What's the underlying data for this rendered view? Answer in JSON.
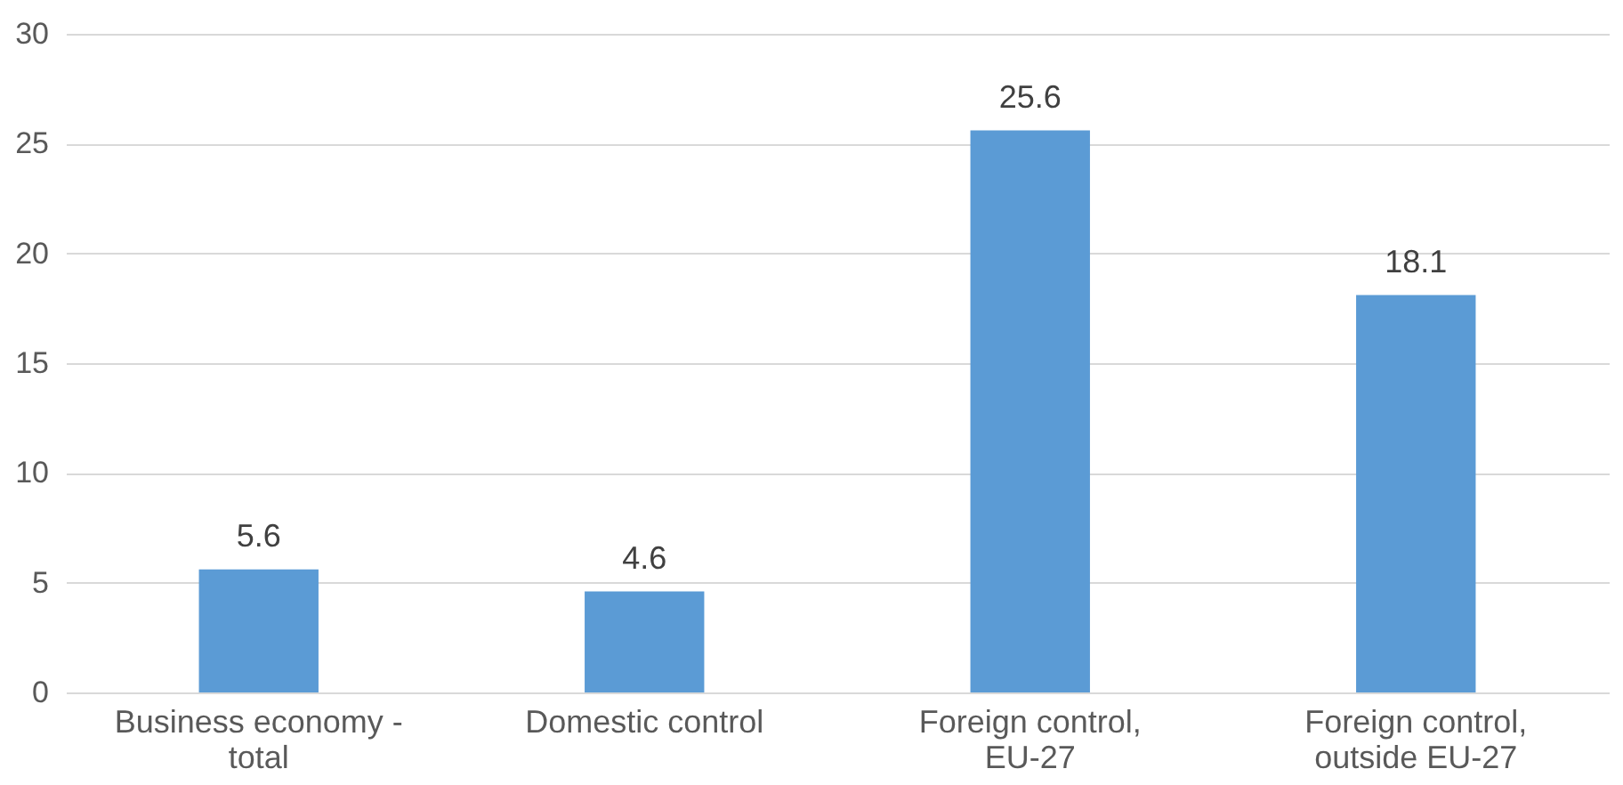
{
  "chart_data": {
    "type": "bar",
    "categories": [
      "Business economy - total",
      "Domestic control",
      "Foreign control, EU-27",
      "Foreign control, outside EU-27"
    ],
    "values": [
      5.6,
      4.6,
      25.6,
      18.1
    ],
    "color": "#5b9bd5",
    "ylim": [
      0,
      30
    ],
    "yticks": [
      0,
      5,
      10,
      15,
      20,
      25,
      30
    ],
    "grid": "y",
    "data_labels": true
  }
}
